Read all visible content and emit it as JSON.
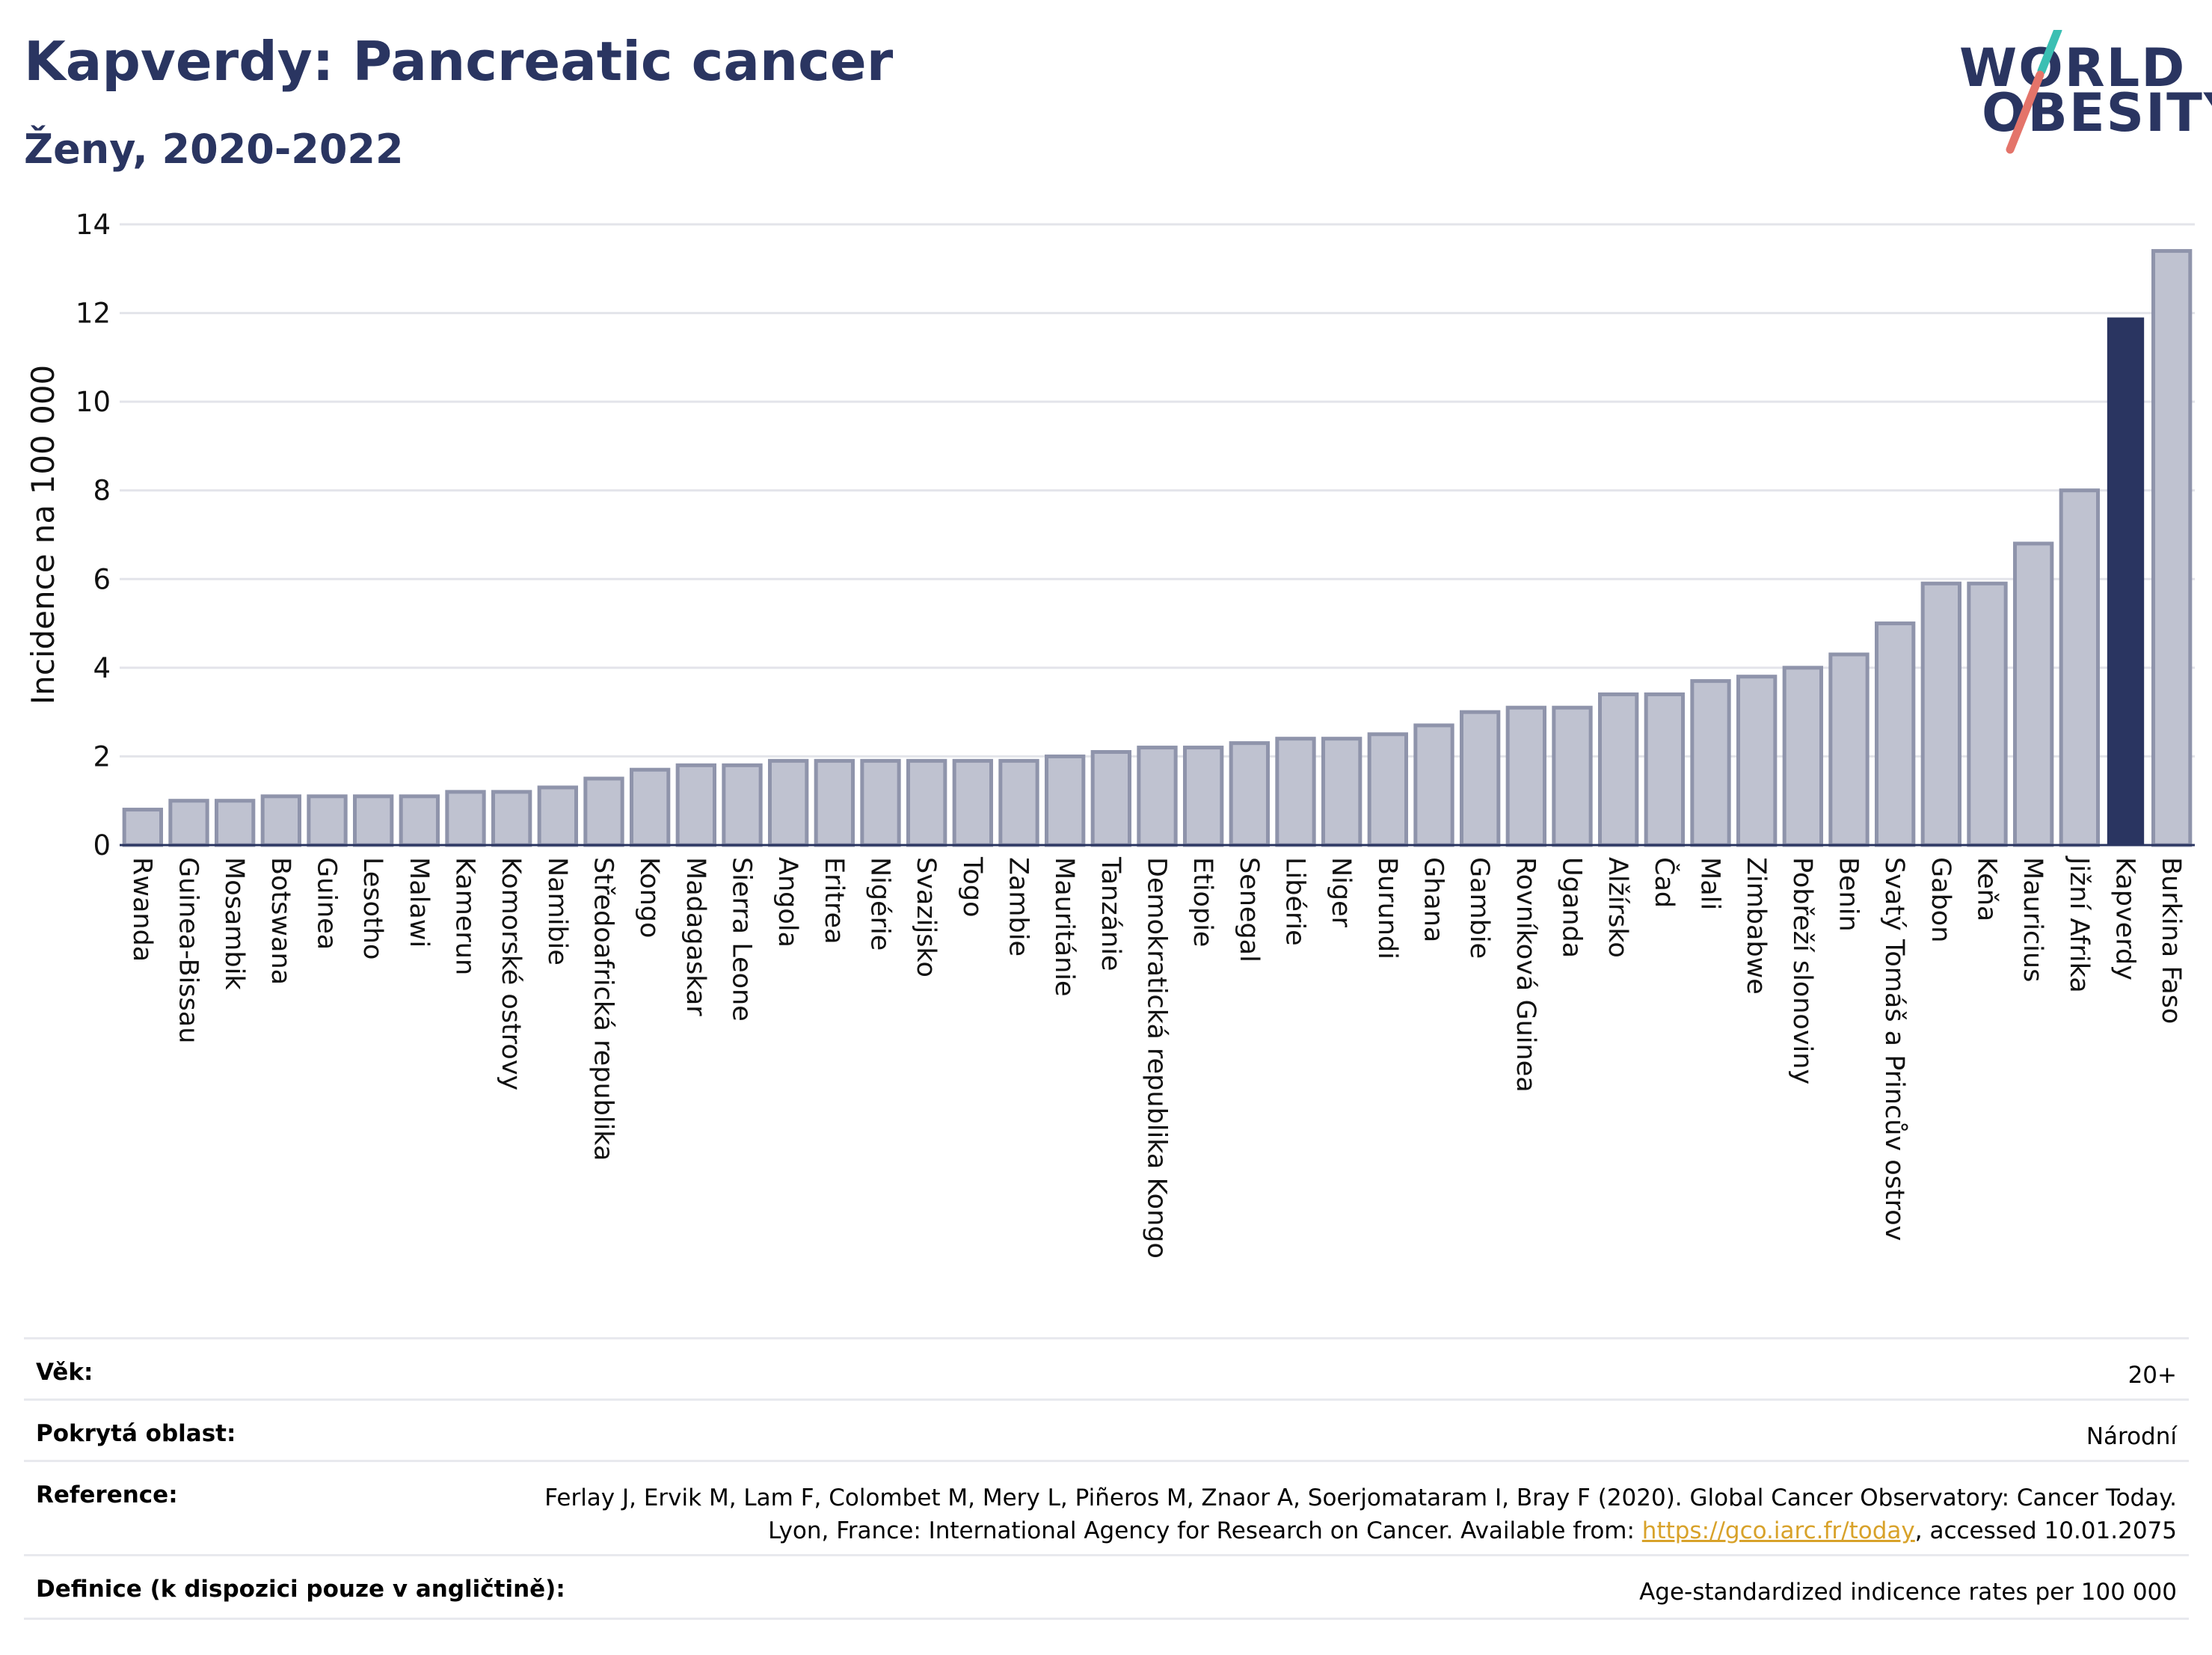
{
  "header": {
    "title": "Kapverdy: Pancreatic cancer",
    "subtitle": "Ženy, 2020-2022"
  },
  "logo": {
    "line1": "WORLD",
    "line2": "OBESITY",
    "colors": {
      "navy": "#2a3561",
      "teal": "#3bbfb3",
      "coral": "#e4746a"
    }
  },
  "chart_data": {
    "type": "bar",
    "ylabel": "Incidence na 100 000",
    "xlabel": "",
    "ylim": [
      0,
      14
    ],
    "yticks": [
      0,
      2,
      4,
      6,
      8,
      10,
      12,
      14
    ],
    "grid": true,
    "highlight": "Kapverdy",
    "colors": {
      "bar": "#bfc2d0",
      "bar_edge": "#8f94ab",
      "highlight": "#2a3561"
    },
    "categories": [
      "Rwanda",
      "Guinea-Bissau",
      "Mosambik",
      "Botswana",
      "Guinea",
      "Lesotho",
      "Malawi",
      "Kamerun",
      "Komorské ostrovy",
      "Namibie",
      "Středoafrická republika",
      "Kongo",
      "Madagaskar",
      "Sierra Leone",
      "Angola",
      "Eritrea",
      "Nigérie",
      "Svazijsko",
      "Togo",
      "Zambie",
      "Mauritánie",
      "Tanzánie",
      "Demokratická republika Kongo",
      "Etiopie",
      "Senegal",
      "Libérie",
      "Niger",
      "Burundi",
      "Ghana",
      "Gambie",
      "Rovníková Guinea",
      "Uganda",
      "Alžírsko",
      "Čad",
      "Mali",
      "Zimbabwe",
      "Pobřeží slonoviny",
      "Benin",
      "Svatý Tomáš a Princův ostrov",
      "Gabon",
      "Keňa",
      "Mauricius",
      "Jižní Afrika",
      "Kapverdy",
      "Burkina Faso"
    ],
    "values": [
      0.8,
      1.0,
      1.0,
      1.1,
      1.1,
      1.1,
      1.1,
      1.2,
      1.2,
      1.3,
      1.5,
      1.7,
      1.8,
      1.8,
      1.9,
      1.9,
      1.9,
      1.9,
      1.9,
      1.9,
      2.0,
      2.1,
      2.2,
      2.2,
      2.3,
      2.4,
      2.4,
      2.5,
      2.7,
      3.0,
      3.1,
      3.1,
      3.4,
      3.4,
      3.7,
      3.8,
      4.0,
      4.3,
      5.0,
      5.9,
      5.9,
      6.8,
      8.0,
      11.9,
      13.4
    ]
  },
  "info": {
    "rows": [
      {
        "label": "Věk:",
        "value": "20+"
      },
      {
        "label": "Pokrytá oblast:",
        "value": "Národní"
      },
      {
        "label": "Reference:",
        "value_before": "Ferlay J, Ervik M, Lam F, Colombet M, Mery L, Piñeros M, Znaor A, Soerjomataram I, Bray F (2020). Global Cancer Observatory: Cancer Today. Lyon, France: International Agency for Research on Cancer. Available from: ",
        "link": "https://gco.iarc.fr/today",
        "value_after": ", accessed 10.01.2075"
      },
      {
        "label": "Definice (k dispozici pouze v angličtině):",
        "value": "Age-standardized indicence rates per 100 000"
      }
    ]
  }
}
